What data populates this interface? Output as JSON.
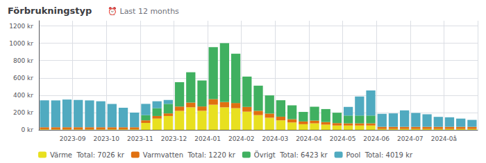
{
  "chart_data": {
    "type": "bar",
    "stacked": true,
    "title": "Förbrukningstyp",
    "subtitle": "⏰ Last 12 months",
    "categories": [
      null,
      null,
      "2023-09",
      null,
      null,
      "2023-10",
      null,
      null,
      "2023-11",
      null,
      null,
      "2023-12",
      null,
      null,
      "2024-01",
      null,
      null,
      "2024-02",
      null,
      null,
      "2024-03",
      null,
      null,
      "2024-04",
      null,
      null,
      "2024-05",
      null,
      null,
      "2024-06",
      null,
      null,
      "2024-07",
      null,
      null,
      "2024-0å",
      null,
      null,
      null
    ],
    "series": [
      {
        "name": "Värme  Total: 7026 kr",
        "color": "#e8e020",
        "values": [
          5,
          5,
          5,
          5,
          5,
          5,
          5,
          5,
          5,
          80,
          130,
          160,
          220,
          260,
          220,
          290,
          260,
          250,
          210,
          170,
          140,
          110,
          85,
          65,
          75,
          60,
          50,
          50,
          50,
          50,
          10,
          10,
          10,
          10,
          10,
          10,
          10,
          10,
          10
        ]
      },
      {
        "name": "Varmvatten  Total: 1220 kr",
        "color": "#e07010",
        "values": [
          25,
          25,
          25,
          25,
          25,
          25,
          25,
          25,
          25,
          30,
          30,
          30,
          50,
          55,
          50,
          65,
          60,
          60,
          55,
          50,
          48,
          42,
          38,
          32,
          32,
          30,
          28,
          25,
          25,
          25,
          25,
          25,
          25,
          25,
          25,
          25,
          25,
          25,
          25
        ]
      },
      {
        "name": "Övrigt  Total: 6423 kr",
        "color": "#40b060",
        "values": [
          0,
          0,
          0,
          0,
          0,
          0,
          0,
          0,
          0,
          60,
          90,
          110,
          280,
          350,
          300,
          600,
          680,
          570,
          350,
          290,
          210,
          190,
          160,
          110,
          160,
          150,
          120,
          90,
          90,
          90,
          0,
          0,
          0,
          0,
          0,
          0,
          0,
          0,
          0
        ]
      },
      {
        "name": "Pool  Total: 4019 kr",
        "color": "#50aac0",
        "values": [
          310,
          310,
          320,
          315,
          310,
          300,
          270,
          225,
          170,
          130,
          80,
          45,
          0,
          0,
          0,
          0,
          0,
          0,
          0,
          0,
          0,
          0,
          0,
          0,
          0,
          0,
          0,
          100,
          220,
          290,
          150,
          155,
          190,
          160,
          145,
          115,
          110,
          95,
          80
        ]
      }
    ],
    "ylim": [
      0,
      1260
    ],
    "yticks": [
      {
        "value": 0,
        "label": "0 kr"
      },
      {
        "value": 200,
        "label": "200 kr"
      },
      {
        "value": 400,
        "label": "400 kr"
      },
      {
        "value": 600,
        "label": "600 kr"
      },
      {
        "value": 800,
        "label": "800 kr"
      },
      {
        "value": 1000,
        "label": "1000 kr"
      },
      {
        "value": 1200,
        "label": "1200 kr"
      }
    ],
    "grid": true,
    "legend": "lower left"
  }
}
